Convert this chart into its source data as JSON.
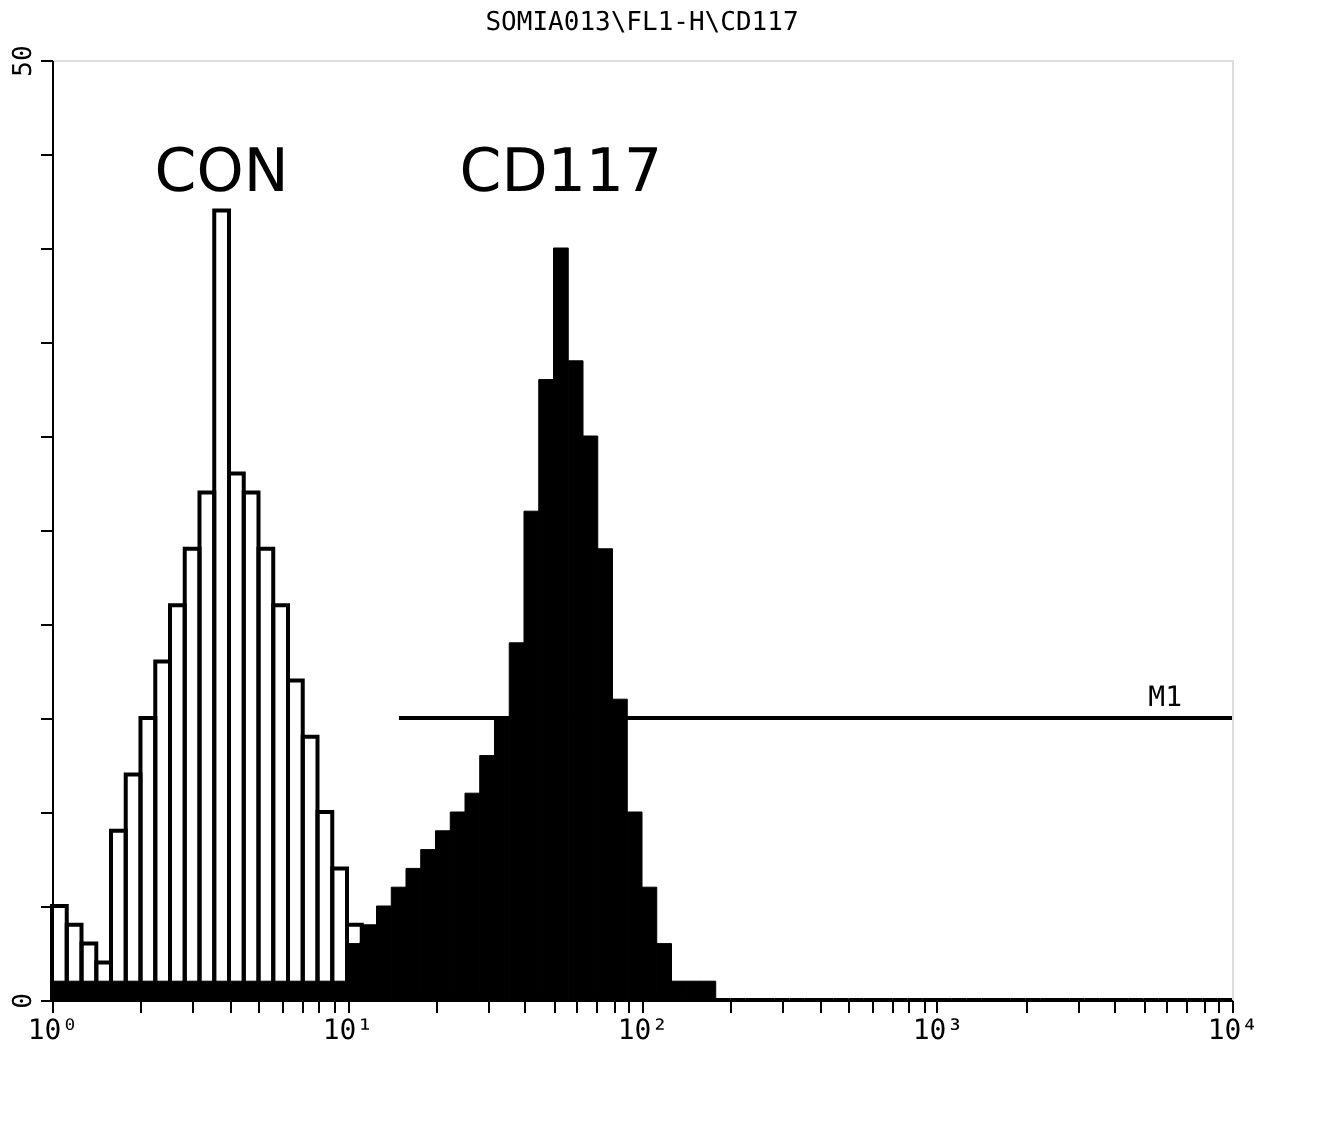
{
  "chart_data": {
    "type": "histogram",
    "title": "SOMIA013\\FL1-H\\CD117",
    "bins": [
      1.0,
      1.122,
      1.259,
      1.413,
      1.585,
      1.778,
      1.995,
      2.239,
      2.512,
      2.818,
      3.162,
      3.548,
      3.981,
      4.467,
      5.012,
      5.623,
      6.31,
      7.079,
      7.943,
      8.913,
      10.0,
      11.22,
      12.59,
      14.13,
      15.85,
      17.78,
      19.95,
      22.39,
      25.12,
      28.18,
      31.62,
      35.48,
      39.81,
      44.67,
      50.12,
      56.23,
      63.1,
      70.79,
      79.43,
      89.13,
      100.0,
      112.2,
      125.9,
      141.3,
      158.5,
      177.8,
      199.5,
      223.9,
      251.2,
      281.8,
      316.2,
      354.8,
      398.1,
      446.7,
      501.2,
      562.3,
      631.0,
      707.9,
      794.3,
      891.3,
      1000.0,
      1122.0,
      1259.0,
      1413.0,
      1585.0,
      1778.0,
      1995.0,
      2239.0,
      2512.0,
      2818.0,
      3162.0,
      3548.0,
      3981.0,
      4467.0,
      5012.0,
      5623.0,
      6310.0,
      7079.0,
      7943.0,
      8913.0,
      10000.0
    ],
    "series": [
      {
        "name": "CD117",
        "color": "#000000",
        "values": [
          1,
          1,
          1,
          1,
          1,
          1,
          1,
          1,
          1,
          1,
          1,
          1,
          1,
          1,
          1,
          1,
          1,
          1,
          1,
          1,
          3,
          4,
          5,
          6,
          7,
          8,
          9,
          10,
          11,
          13,
          15,
          19,
          26,
          33,
          40,
          34,
          30,
          24,
          16,
          10,
          6,
          3,
          1,
          1,
          1,
          0,
          0,
          0,
          0,
          0,
          0,
          0,
          0,
          0,
          0,
          0,
          0,
          0,
          0,
          0,
          0,
          0,
          0,
          0,
          0,
          0,
          0,
          0,
          0,
          0,
          0,
          0,
          0,
          0,
          0,
          0,
          0,
          0,
          0,
          0
        ]
      },
      {
        "name": "CON",
        "color": "#000000",
        "values": [
          5,
          4,
          3,
          2,
          9,
          12,
          15,
          18,
          21,
          24,
          27,
          42,
          28,
          27,
          24,
          21,
          17,
          14,
          10,
          7,
          4,
          3,
          null,
          null,
          0,
          0,
          0,
          0,
          0,
          0,
          0,
          0,
          0,
          0,
          0,
          0,
          0,
          0,
          0,
          0,
          0,
          0,
          0,
          0,
          0,
          0,
          0,
          0,
          0,
          0,
          0,
          0,
          0,
          0,
          0,
          0,
          0,
          0,
          0,
          0,
          0,
          0,
          0,
          0,
          0,
          0,
          0,
          0,
          0,
          0,
          0,
          0,
          0,
          0,
          0,
          0,
          0,
          0,
          0,
          0
        ]
      },
      {
        "name": "M1",
        "type": "line",
        "color": "#000000",
        "x": [
          15,
          10000
        ],
        "values": [
          15,
          15
        ]
      }
    ],
    "xlim": [
      1,
      10000
    ],
    "ylim": [
      0,
      50
    ],
    "xticks": [
      {
        "value": 1,
        "label": "10⁰"
      },
      {
        "value": 2,
        "label": null
      },
      {
        "value": 3,
        "label": null
      },
      {
        "value": 4,
        "label": null
      },
      {
        "value": 5,
        "label": null
      },
      {
        "value": 6,
        "label": null
      },
      {
        "value": 7,
        "label": null
      },
      {
        "value": 8,
        "label": null
      },
      {
        "value": 9,
        "label": null
      },
      {
        "value": 10,
        "label": "10¹"
      },
      {
        "value": 20,
        "label": null
      },
      {
        "value": 30,
        "label": null
      },
      {
        "value": 40,
        "label": null
      },
      {
        "value": 50,
        "label": null
      },
      {
        "value": 60,
        "label": null
      },
      {
        "value": 70,
        "label": null
      },
      {
        "value": 80,
        "label": null
      },
      {
        "value": 90,
        "label": null
      },
      {
        "value": 100,
        "label": "10²"
      },
      {
        "value": 200,
        "label": null
      },
      {
        "value": 300,
        "label": null
      },
      {
        "value": 400,
        "label": null
      },
      {
        "value": 500,
        "label": null
      },
      {
        "value": 600,
        "label": null
      },
      {
        "value": 700,
        "label": null
      },
      {
        "value": 800,
        "label": null
      },
      {
        "value": 900,
        "label": null
      },
      {
        "value": 1000,
        "label": "10³"
      },
      {
        "value": 2000,
        "label": null
      },
      {
        "value": 3000,
        "label": null
      },
      {
        "value": 4000,
        "label": null
      },
      {
        "value": 5000,
        "label": null
      },
      {
        "value": 6000,
        "label": null
      },
      {
        "value": 7000,
        "label": null
      },
      {
        "value": 8000,
        "label": null
      },
      {
        "value": 9000,
        "label": null
      },
      {
        "value": 10000,
        "label": "10⁴"
      }
    ],
    "yticks": [
      0,
      {
        "value": 5,
        "label": null
      },
      {
        "value": 10,
        "label": null
      },
      {
        "value": 15,
        "label": null
      },
      {
        "value": 20,
        "label": null
      },
      {
        "value": 25,
        "label": null
      },
      {
        "value": 30,
        "label": null
      },
      {
        "value": 35,
        "label": null
      },
      {
        "value": 40,
        "label": null
      },
      {
        "value": 45,
        "label": null
      },
      50
    ],
    "log": "x",
    "grid": false,
    "legend": "top left"
  }
}
